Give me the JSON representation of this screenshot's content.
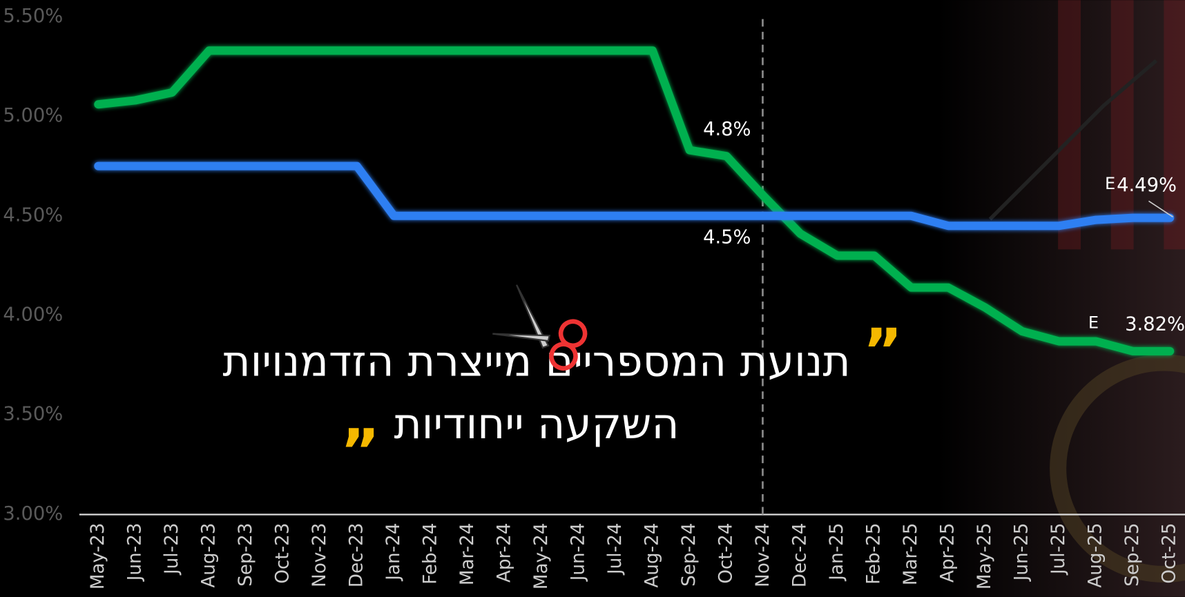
{
  "chart_data": {
    "type": "line",
    "headline": [
      "תנועת המספריים מייצרת הזדמנויות",
      "השקעה ייחודיות"
    ],
    "quote_open": "”",
    "quote_close": "„",
    "estimate_label": "E",
    "categories": [
      "May-23",
      "Jun-23",
      "Jul-23",
      "Aug-23",
      "Sep-23",
      "Oct-23",
      "Nov-23",
      "Dec-23",
      "Jan-24",
      "Feb-24",
      "Mar-24",
      "Apr-24",
      "May-24",
      "Jun-24",
      "Jul-24",
      "Aug-24",
      "Sep-24",
      "Oct-24",
      "Nov-24",
      "Dec-24",
      "Jan-25",
      "Feb-25",
      "Mar-25",
      "Apr-25",
      "May-25",
      "Jun-25",
      "Jul-25",
      "Aug-25",
      "Sep-25",
      "Oct-25"
    ],
    "series": [
      {
        "color": "#00b04f",
        "values": [
          5.06,
          5.08,
          5.12,
          5.33,
          5.33,
          5.33,
          5.33,
          5.33,
          5.33,
          5.33,
          5.33,
          5.33,
          5.33,
          5.33,
          5.33,
          5.33,
          4.83,
          4.8,
          4.6,
          4.41,
          4.3,
          4.3,
          4.14,
          4.14,
          4.04,
          3.92,
          3.87,
          3.87,
          3.82,
          3.82
        ],
        "value_labels": [
          null,
          null,
          null,
          null,
          null,
          null,
          null,
          null,
          null,
          null,
          null,
          null,
          null,
          null,
          null,
          null,
          null,
          "4.8%",
          null,
          null,
          null,
          null,
          null,
          null,
          null,
          null,
          null,
          null,
          null,
          "3.82%"
        ]
      },
      {
        "color": "#2e7ff2",
        "values": [
          4.75,
          4.75,
          4.75,
          4.75,
          4.75,
          4.75,
          4.75,
          4.75,
          4.5,
          4.5,
          4.5,
          4.5,
          4.5,
          4.5,
          4.5,
          4.5,
          4.5,
          4.5,
          4.5,
          4.5,
          4.5,
          4.5,
          4.5,
          4.45,
          4.45,
          4.45,
          4.45,
          4.48,
          4.49,
          4.49
        ],
        "value_labels": [
          null,
          null,
          null,
          null,
          null,
          null,
          null,
          null,
          null,
          null,
          null,
          null,
          null,
          null,
          null,
          null,
          null,
          "4.5%",
          null,
          null,
          null,
          null,
          null,
          null,
          null,
          null,
          null,
          null,
          null,
          "4.49%"
        ]
      }
    ],
    "marker_category": "Nov-24",
    "ylim": [
      3,
      5.5
    ],
    "yticks": [
      {
        "value": 3,
        "label": "3.00%"
      },
      {
        "value": 3.5,
        "label": "3.50%"
      },
      {
        "value": 4,
        "label": "4.00%"
      },
      {
        "value": 4.5,
        "label": "4.50%"
      },
      {
        "value": 5,
        "label": "5.00%"
      },
      {
        "value": 5.5,
        "label": "5.50%"
      }
    ]
  }
}
